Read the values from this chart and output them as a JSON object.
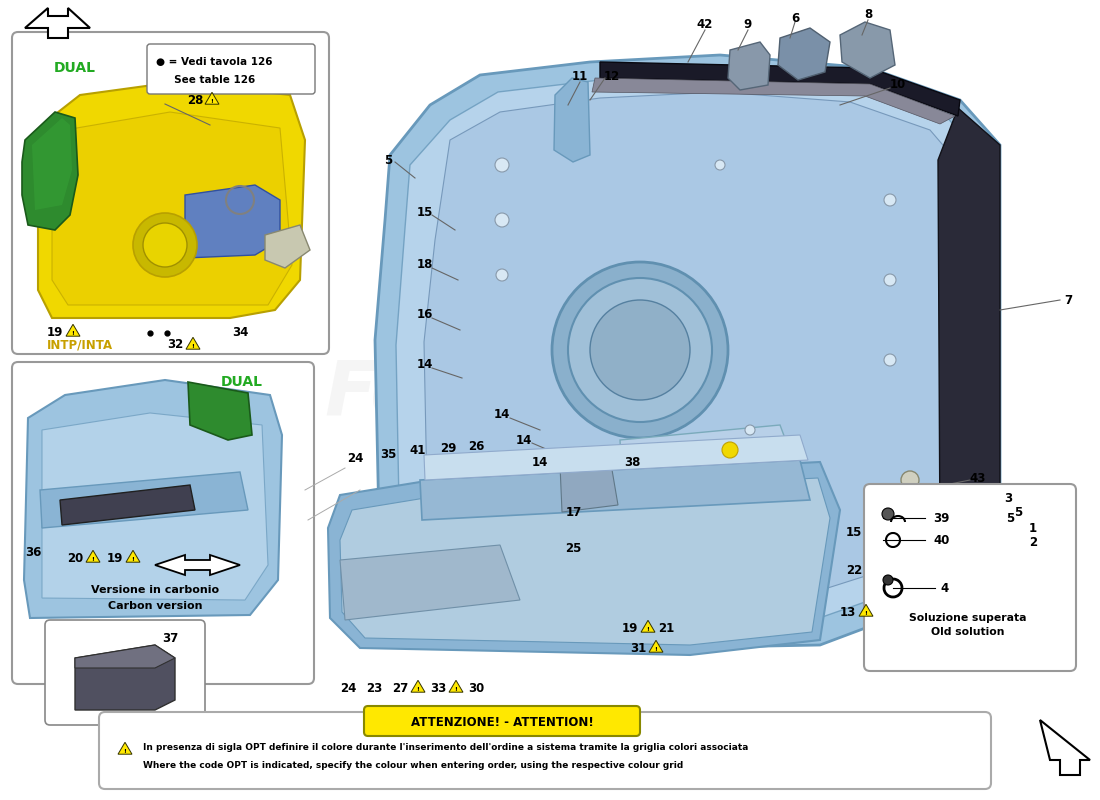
{
  "bg_color": "#ffffff",
  "attention_title": "ATTENZIONE! - ATTENTION!",
  "attention_text1": "In presenza di sigla OPT definire il colore durante l'inserimento dell'ordine a sistema tramite la griglia colori associata",
  "attention_text2": "Where the code OPT is indicated, specify the colour when entering order, using the respective colour grid",
  "legend_text1": "● = Vedi tavola 126",
  "legend_text2": "     See table 126",
  "dual_color": "#22AA22",
  "intp_color": "#C8A000",
  "yellow_door_color": "#F0D800",
  "yellow_door_edge": "#B8A000",
  "green_trim_color": "#2E8B2E",
  "blue_main": "#9DC4E0",
  "blue_dark": "#6899BB",
  "blue_light": "#BDD8EE",
  "blue_mid": "#8AB4D4",
  "dark_trim": "#3A3A4A",
  "attention_yellow": "#FFE800",
  "gray_border": "#888888",
  "watermark_color": "#E0E0E0"
}
